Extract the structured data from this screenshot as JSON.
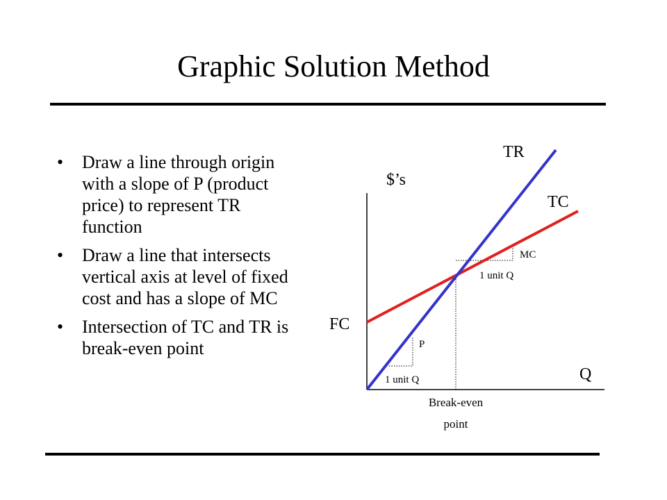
{
  "slide": {
    "title": "Graphic Solution Method",
    "bullets": [
      "Draw a line through origin with a slope of P (product price) to represent TR function",
      "Draw a line that intersects vertical axis at level of fixed cost and has a slope of MC",
      "Intersection of TC and TR is break-even point"
    ],
    "bullet_glyph": "•"
  },
  "diagram": {
    "y_axis_label": "$’s",
    "x_axis_label": "Q",
    "tr_label": "TR",
    "tc_label": "TC",
    "fc_label": "FC",
    "mc_label": "MC",
    "p_label": "P",
    "unit_q_label_tc": "1 unit Q",
    "unit_q_label_tr": "1 unit Q",
    "breakeven_label_line1": "Break-even",
    "breakeven_label_line2": "point",
    "colors": {
      "tr_line": "#3333cc",
      "tc_line": "#e02020",
      "axis": "#000000"
    }
  }
}
